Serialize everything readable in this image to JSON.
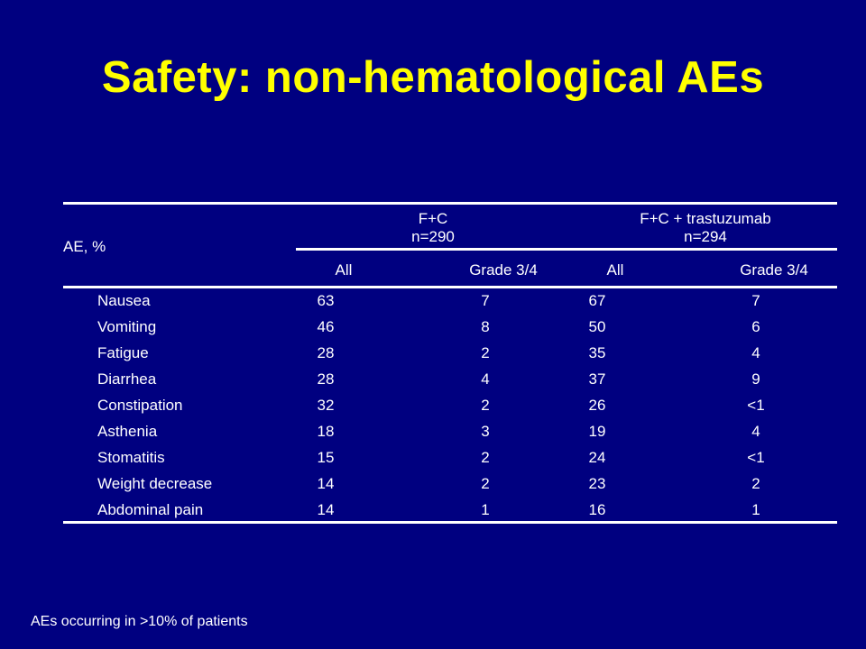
{
  "title": "Safety: non-hematological AEs",
  "table": {
    "row_header": "AE, %",
    "groups": [
      {
        "name": "F+C",
        "n": "n=290"
      },
      {
        "name": "F+C + trastuzumab",
        "n": "n=294"
      }
    ],
    "subheaders": [
      "All",
      "Grade 3/4",
      "All",
      "Grade 3/4"
    ],
    "rows": [
      {
        "ae": "Nausea",
        "vals": [
          "63",
          "7",
          "67",
          "7"
        ]
      },
      {
        "ae": "Vomiting",
        "vals": [
          "46",
          "8",
          "50",
          "6"
        ]
      },
      {
        "ae": "Fatigue",
        "vals": [
          "28",
          "2",
          "35",
          "4"
        ]
      },
      {
        "ae": "Diarrhea",
        "vals": [
          "28",
          "4",
          "37",
          "9"
        ]
      },
      {
        "ae": "Constipation",
        "vals": [
          "32",
          "2",
          "26",
          "<1"
        ]
      },
      {
        "ae": "Asthenia",
        "vals": [
          "18",
          "3",
          "19",
          "4"
        ]
      },
      {
        "ae": "Stomatitis",
        "vals": [
          "15",
          "2",
          "24",
          "<1"
        ]
      },
      {
        "ae": "Weight decrease",
        "vals": [
          "14",
          "2",
          "23",
          "2"
        ]
      },
      {
        "ae": "Abdominal pain",
        "vals": [
          "14",
          "1",
          "16",
          "1"
        ]
      }
    ]
  },
  "footnote": "AEs occurring in >10% of patients",
  "colors": {
    "background": "#000080",
    "title": "#ffff00",
    "text": "#ffffff"
  }
}
